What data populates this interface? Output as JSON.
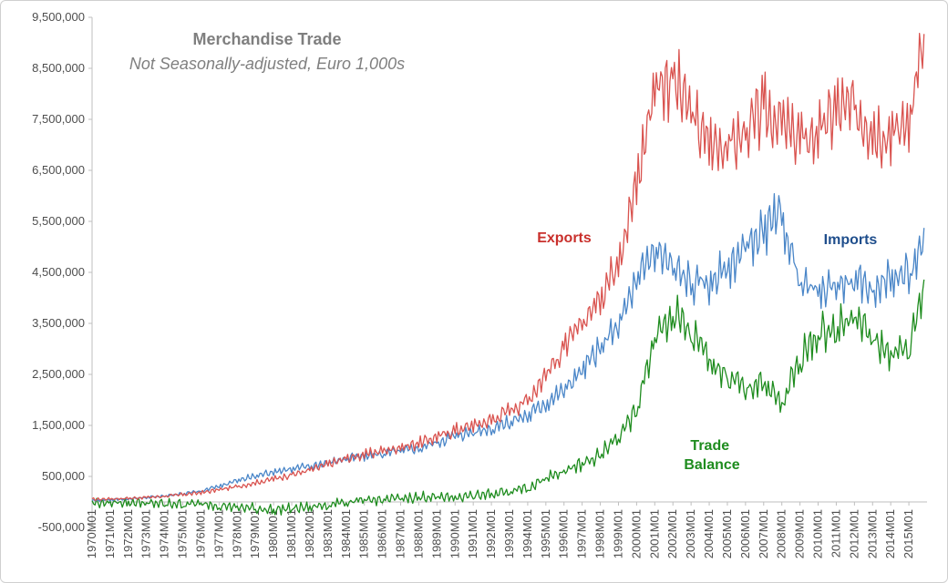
{
  "chart_data": {
    "type": "line",
    "title": "Merchandise Trade",
    "subtitle": "Not Seasonally-adjusted, Euro 1,000s",
    "xlabel": "",
    "ylabel": "",
    "ylim": [
      -500000,
      9500000
    ],
    "y_ticks": [
      "9,500,000",
      "8,500,000",
      "7,500,000",
      "6,500,000",
      "5,500,000",
      "4,500,000",
      "3,500,000",
      "2,500,000",
      "1,500,000",
      "500,000",
      "-500,000"
    ],
    "y_tick_values": [
      9500000,
      8500000,
      7500000,
      6500000,
      5500000,
      4500000,
      3500000,
      2500000,
      1500000,
      500000,
      -500000
    ],
    "x_ticks": [
      "1970M01",
      "1971M01",
      "1972M01",
      "1973M01",
      "1974M01",
      "1975M01",
      "1976M01",
      "1977M01",
      "1978M01",
      "1979M01",
      "1980M01",
      "1981M01",
      "1982M01",
      "1983M01",
      "1984M01",
      "1985M01",
      "1986M01",
      "1987M01",
      "1988M01",
      "1989M01",
      "1990M01",
      "1991M01",
      "1992M01",
      "1993M01",
      "1994M01",
      "1995M01",
      "1996M01",
      "1997M01",
      "1998M01",
      "1999M01",
      "2000M01",
      "2001M01",
      "2002M01",
      "2003M01",
      "2004M01",
      "2005M01",
      "2006M01",
      "2007M01",
      "2008M01",
      "2009M01",
      "2010M01",
      "2011M01",
      "2012M01",
      "2013M01",
      "2014M01",
      "2015M01"
    ],
    "x": [
      1970,
      1972,
      1974,
      1976,
      1978,
      1980,
      1982,
      1984,
      1986,
      1988,
      1990,
      1992,
      1994,
      1996,
      1998,
      1999,
      2000,
      2001,
      2002,
      2003,
      2004,
      2005,
      2006,
      2007,
      2008,
      2009,
      2010,
      2011,
      2012,
      2013,
      2014,
      2015,
      2015.9
    ],
    "series": [
      {
        "name": "Exports",
        "color": "#d9534f",
        "values": [
          50000,
          70000,
          110000,
          180000,
          300000,
          450000,
          620000,
          850000,
          1000000,
          1150000,
          1400000,
          1600000,
          2000000,
          3000000,
          4000000,
          4800000,
          6200000,
          8200000,
          8300000,
          7600000,
          7000000,
          7000000,
          7200000,
          7700000,
          7400000,
          7100000,
          7200000,
          7700000,
          7700000,
          7300000,
          7200000,
          7500000,
          9200000
        ]
      },
      {
        "name": "Imports",
        "color": "#4a86c8",
        "values": [
          30000,
          60000,
          120000,
          210000,
          420000,
          600000,
          700000,
          850000,
          950000,
          1050000,
          1300000,
          1450000,
          1700000,
          2200000,
          3000000,
          3500000,
          4300000,
          5000000,
          4600000,
          4300000,
          4300000,
          4600000,
          5000000,
          5300000,
          5600000,
          4300000,
          4100000,
          4300000,
          4300000,
          4200000,
          4400000,
          4500000,
          5000000
        ]
      },
      {
        "name": "Trade Balance",
        "color": "#1e8c1e",
        "values": [
          -20000,
          0,
          -40000,
          -30000,
          -100000,
          -150000,
          -100000,
          0,
          50000,
          100000,
          100000,
          150000,
          300000,
          600000,
          900000,
          1300000,
          1800000,
          3200000,
          3700000,
          3300000,
          2800000,
          2500000,
          2200000,
          2400000,
          1900000,
          2800000,
          3300000,
          3400000,
          3700000,
          3200000,
          2900000,
          3000000,
          4400000
        ]
      }
    ],
    "series_label_colors": {
      "Exports": "#c9302c",
      "Imports": "#1f4e8c",
      "Trade Balance": "#1e8c1e"
    },
    "legend": "inline labels",
    "grid": false
  }
}
